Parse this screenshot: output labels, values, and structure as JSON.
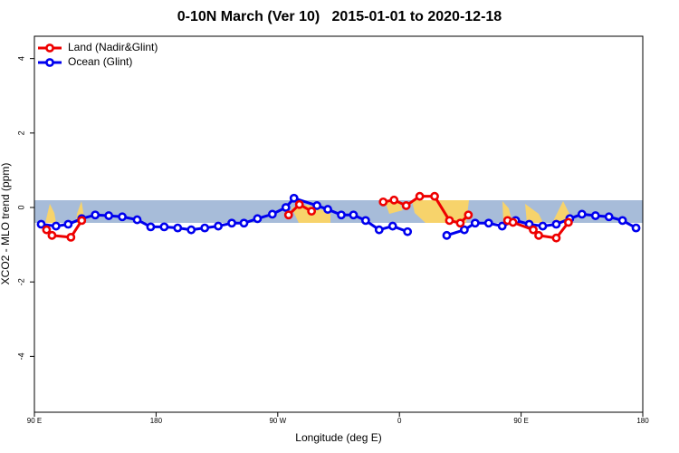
{
  "chart_data": {
    "type": "line",
    "title": "0-10N March (Ver 10)   2015-01-01 to 2020-12-18",
    "x_label": "Longitude (deg E)",
    "y_label": "XCO2 - MLO trend (ppm)",
    "xlim": [
      90,
      540
    ],
    "xticks": [
      {
        "value": 90,
        "label": "90 E"
      },
      {
        "value": 180,
        "label": "180"
      },
      {
        "value": 270,
        "label": "90 W"
      },
      {
        "value": 360,
        "label": "0"
      },
      {
        "value": 450,
        "label": "90 E"
      },
      {
        "value": 540,
        "label": "180"
      }
    ],
    "ylim": [
      -5.5,
      4.6
    ],
    "yticks": [
      -4,
      -2,
      0,
      2,
      4
    ],
    "grid": false,
    "legend": "top-left",
    "series": [
      {
        "name": "Land (Nadir&Glint)",
        "color": "#ee0000",
        "x": [
          99,
          103,
          117,
          125,
          null,
          278,
          286,
          295,
          null,
          348,
          356,
          365,
          375,
          386,
          397,
          405,
          411,
          null,
          440,
          444,
          459,
          463,
          476,
          485
        ],
        "values": [
          -0.6,
          -0.75,
          -0.8,
          -0.35,
          null,
          -0.2,
          0.08,
          -0.1,
          null,
          0.15,
          0.2,
          0.05,
          0.3,
          0.3,
          -0.35,
          -0.42,
          -0.2,
          null,
          -0.35,
          -0.4,
          -0.6,
          -0.75,
          -0.82,
          -0.4
        ]
      },
      {
        "name": "Ocean (Glint)",
        "color": "#0000ee",
        "x": [
          95,
          106,
          115,
          125,
          135,
          145,
          155,
          166,
          176,
          186,
          196,
          206,
          216,
          226,
          236,
          245,
          255,
          266,
          276,
          282,
          299,
          307,
          317,
          326,
          335,
          345,
          355,
          366,
          null,
          395,
          408,
          416,
          426,
          436,
          446,
          456,
          466,
          476,
          486,
          495,
          505,
          515,
          525,
          535
        ],
        "values": [
          -0.45,
          -0.5,
          -0.45,
          -0.3,
          -0.2,
          -0.22,
          -0.25,
          -0.33,
          -0.52,
          -0.52,
          -0.55,
          -0.6,
          -0.55,
          -0.5,
          -0.42,
          -0.42,
          -0.3,
          -0.18,
          0.0,
          0.25,
          0.05,
          -0.05,
          -0.2,
          -0.2,
          -0.35,
          -0.6,
          -0.5,
          -0.65,
          null,
          -0.75,
          -0.6,
          -0.42,
          -0.42,
          -0.5,
          -0.35,
          -0.45,
          -0.5,
          -0.45,
          -0.3,
          -0.18,
          -0.22,
          -0.25,
          -0.35,
          -0.55
        ]
      }
    ]
  }
}
